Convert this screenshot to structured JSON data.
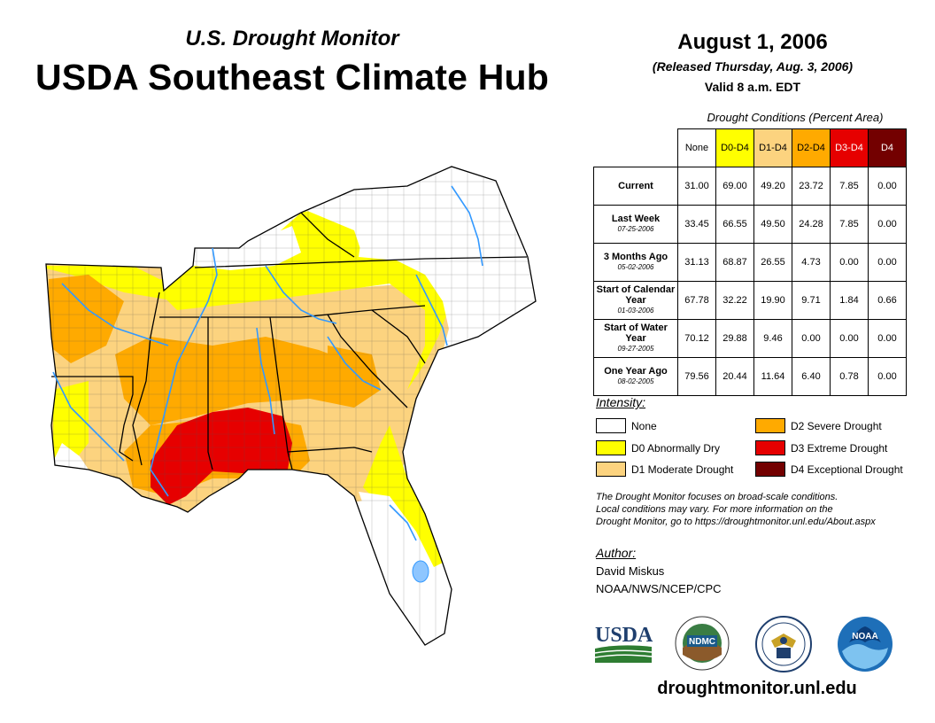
{
  "header": {
    "subtitle": "U.S. Drought Monitor",
    "title": "USDA Southeast Climate Hub",
    "date": "August 1, 2006",
    "released": "(Released Thursday, Aug. 3, 2006)",
    "valid": "Valid 8 a.m. EDT"
  },
  "table": {
    "caption": "Drought Conditions (Percent Area)",
    "columns": [
      "None",
      "D0-D4",
      "D1-D4",
      "D2-D4",
      "D3-D4",
      "D4"
    ],
    "rows": [
      {
        "label": "Current",
        "date": "",
        "values": [
          "31.00",
          "69.00",
          "49.20",
          "23.72",
          "7.85",
          "0.00"
        ]
      },
      {
        "label": "Last Week",
        "date": "07-25-2006",
        "values": [
          "33.45",
          "66.55",
          "49.50",
          "24.28",
          "7.85",
          "0.00"
        ]
      },
      {
        "label": "3 Months Ago",
        "date": "05-02-2006",
        "values": [
          "31.13",
          "68.87",
          "26.55",
          "4.73",
          "0.00",
          "0.00"
        ]
      },
      {
        "label": "Start of Calendar Year",
        "date": "01-03-2006",
        "values": [
          "67.78",
          "32.22",
          "19.90",
          "9.71",
          "1.84",
          "0.66"
        ]
      },
      {
        "label": "Start of Water Year",
        "date": "09-27-2005",
        "values": [
          "70.12",
          "29.88",
          "9.46",
          "0.00",
          "0.00",
          "0.00"
        ]
      },
      {
        "label": "One Year Ago",
        "date": "08-02-2005",
        "values": [
          "79.56",
          "20.44",
          "11.64",
          "6.40",
          "0.78",
          "0.00"
        ]
      }
    ]
  },
  "legend": {
    "title": "Intensity:",
    "items": [
      {
        "label": "None",
        "color": "#ffffff"
      },
      {
        "label": "D0 Abnormally Dry",
        "color": "#ffff00"
      },
      {
        "label": "D1 Moderate Drought",
        "color": "#fcd37f"
      },
      {
        "label": "D2 Severe Drought",
        "color": "#ffaa00"
      },
      {
        "label": "D3 Extreme Drought",
        "color": "#e60000"
      },
      {
        "label": "D4 Exceptional Drought",
        "color": "#730000"
      }
    ]
  },
  "note": {
    "line1": "The Drought Monitor focuses on broad-scale conditions.",
    "line2": "Local conditions may vary. For more information on the",
    "line3": "Drought Monitor, go to https://droughtmonitor.unl.edu/About.aspx"
  },
  "author": {
    "label": "Author:",
    "name": "David Miskus",
    "org": "NOAA/NWS/NCEP/CPC"
  },
  "logos": {
    "usda": "USDA",
    "ndmc": "NDMC",
    "noaa": "NOAA"
  },
  "footer": {
    "url": "droughtmonitor.unl.edu"
  }
}
